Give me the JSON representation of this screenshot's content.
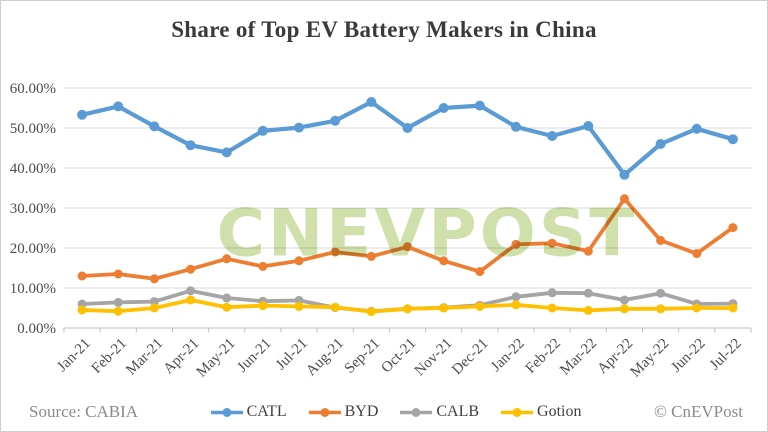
{
  "window": {
    "title": "Share of Top EV Battery Makers in China"
  },
  "chart_data": {
    "type": "line",
    "title": "Share of Top EV Battery Makers in China",
    "categories": [
      "Jan-21",
      "Feb-21",
      "Mar-21",
      "Apr-21",
      "May-21",
      "Jun-21",
      "Jul-21",
      "Aug-21",
      "Sep-21",
      "Oct-21",
      "Nov-21",
      "Dec-21",
      "Jan-22",
      "Feb-22",
      "Mar-22",
      "Apr-22",
      "May-22",
      "Jun-22",
      "Jul-22"
    ],
    "series": [
      {
        "name": "CATL",
        "color": "#5B9BD5",
        "values": [
          53.3,
          55.4,
          50.4,
          45.7,
          43.9,
          49.3,
          50.1,
          51.8,
          56.5,
          50.0,
          55.0,
          55.6,
          50.3,
          48.0,
          50.5,
          38.3,
          46.0,
          49.8,
          47.2
        ]
      },
      {
        "name": "BYD",
        "color": "#ED7D31",
        "values": [
          13.0,
          13.5,
          12.3,
          14.7,
          17.3,
          15.4,
          16.8,
          19.0,
          17.9,
          20.3,
          16.8,
          14.1,
          20.9,
          21.2,
          19.2,
          32.3,
          21.9,
          18.6,
          25.1
        ]
      },
      {
        "name": "CALB",
        "color": "#A5A5A5",
        "values": [
          6.0,
          6.4,
          6.6,
          9.3,
          7.5,
          6.7,
          6.9,
          5.1,
          4.2,
          4.8,
          5.1,
          5.7,
          7.8,
          8.8,
          8.7,
          7.0,
          8.7,
          6.0,
          6.1
        ]
      },
      {
        "name": "Gotion",
        "color": "#FFC000",
        "values": [
          4.5,
          4.2,
          5.0,
          7.0,
          5.2,
          5.6,
          5.4,
          5.2,
          4.1,
          4.8,
          5.0,
          5.4,
          5.8,
          5.0,
          4.4,
          4.8,
          4.8,
          5.0,
          5.0
        ]
      }
    ],
    "ylim": [
      0,
      60
    ],
    "ytick_step": 10,
    "ytick_labels": [
      "0.00%",
      "10.00%",
      "20.00%",
      "30.00%",
      "40.00%",
      "50.00%",
      "60.00%"
    ],
    "grid": true,
    "legend_position": "bottom",
    "xlabel": "",
    "ylabel": ""
  },
  "watermark": {
    "text": "CNEVPOST"
  },
  "footer": {
    "source": "Source: CABIA",
    "copyright": "© CnEVPost"
  },
  "style": {
    "gridline_color": "#d9d9d9",
    "axis_color": "#bfbfbf",
    "tick_label_color": "#4d4d4d"
  }
}
